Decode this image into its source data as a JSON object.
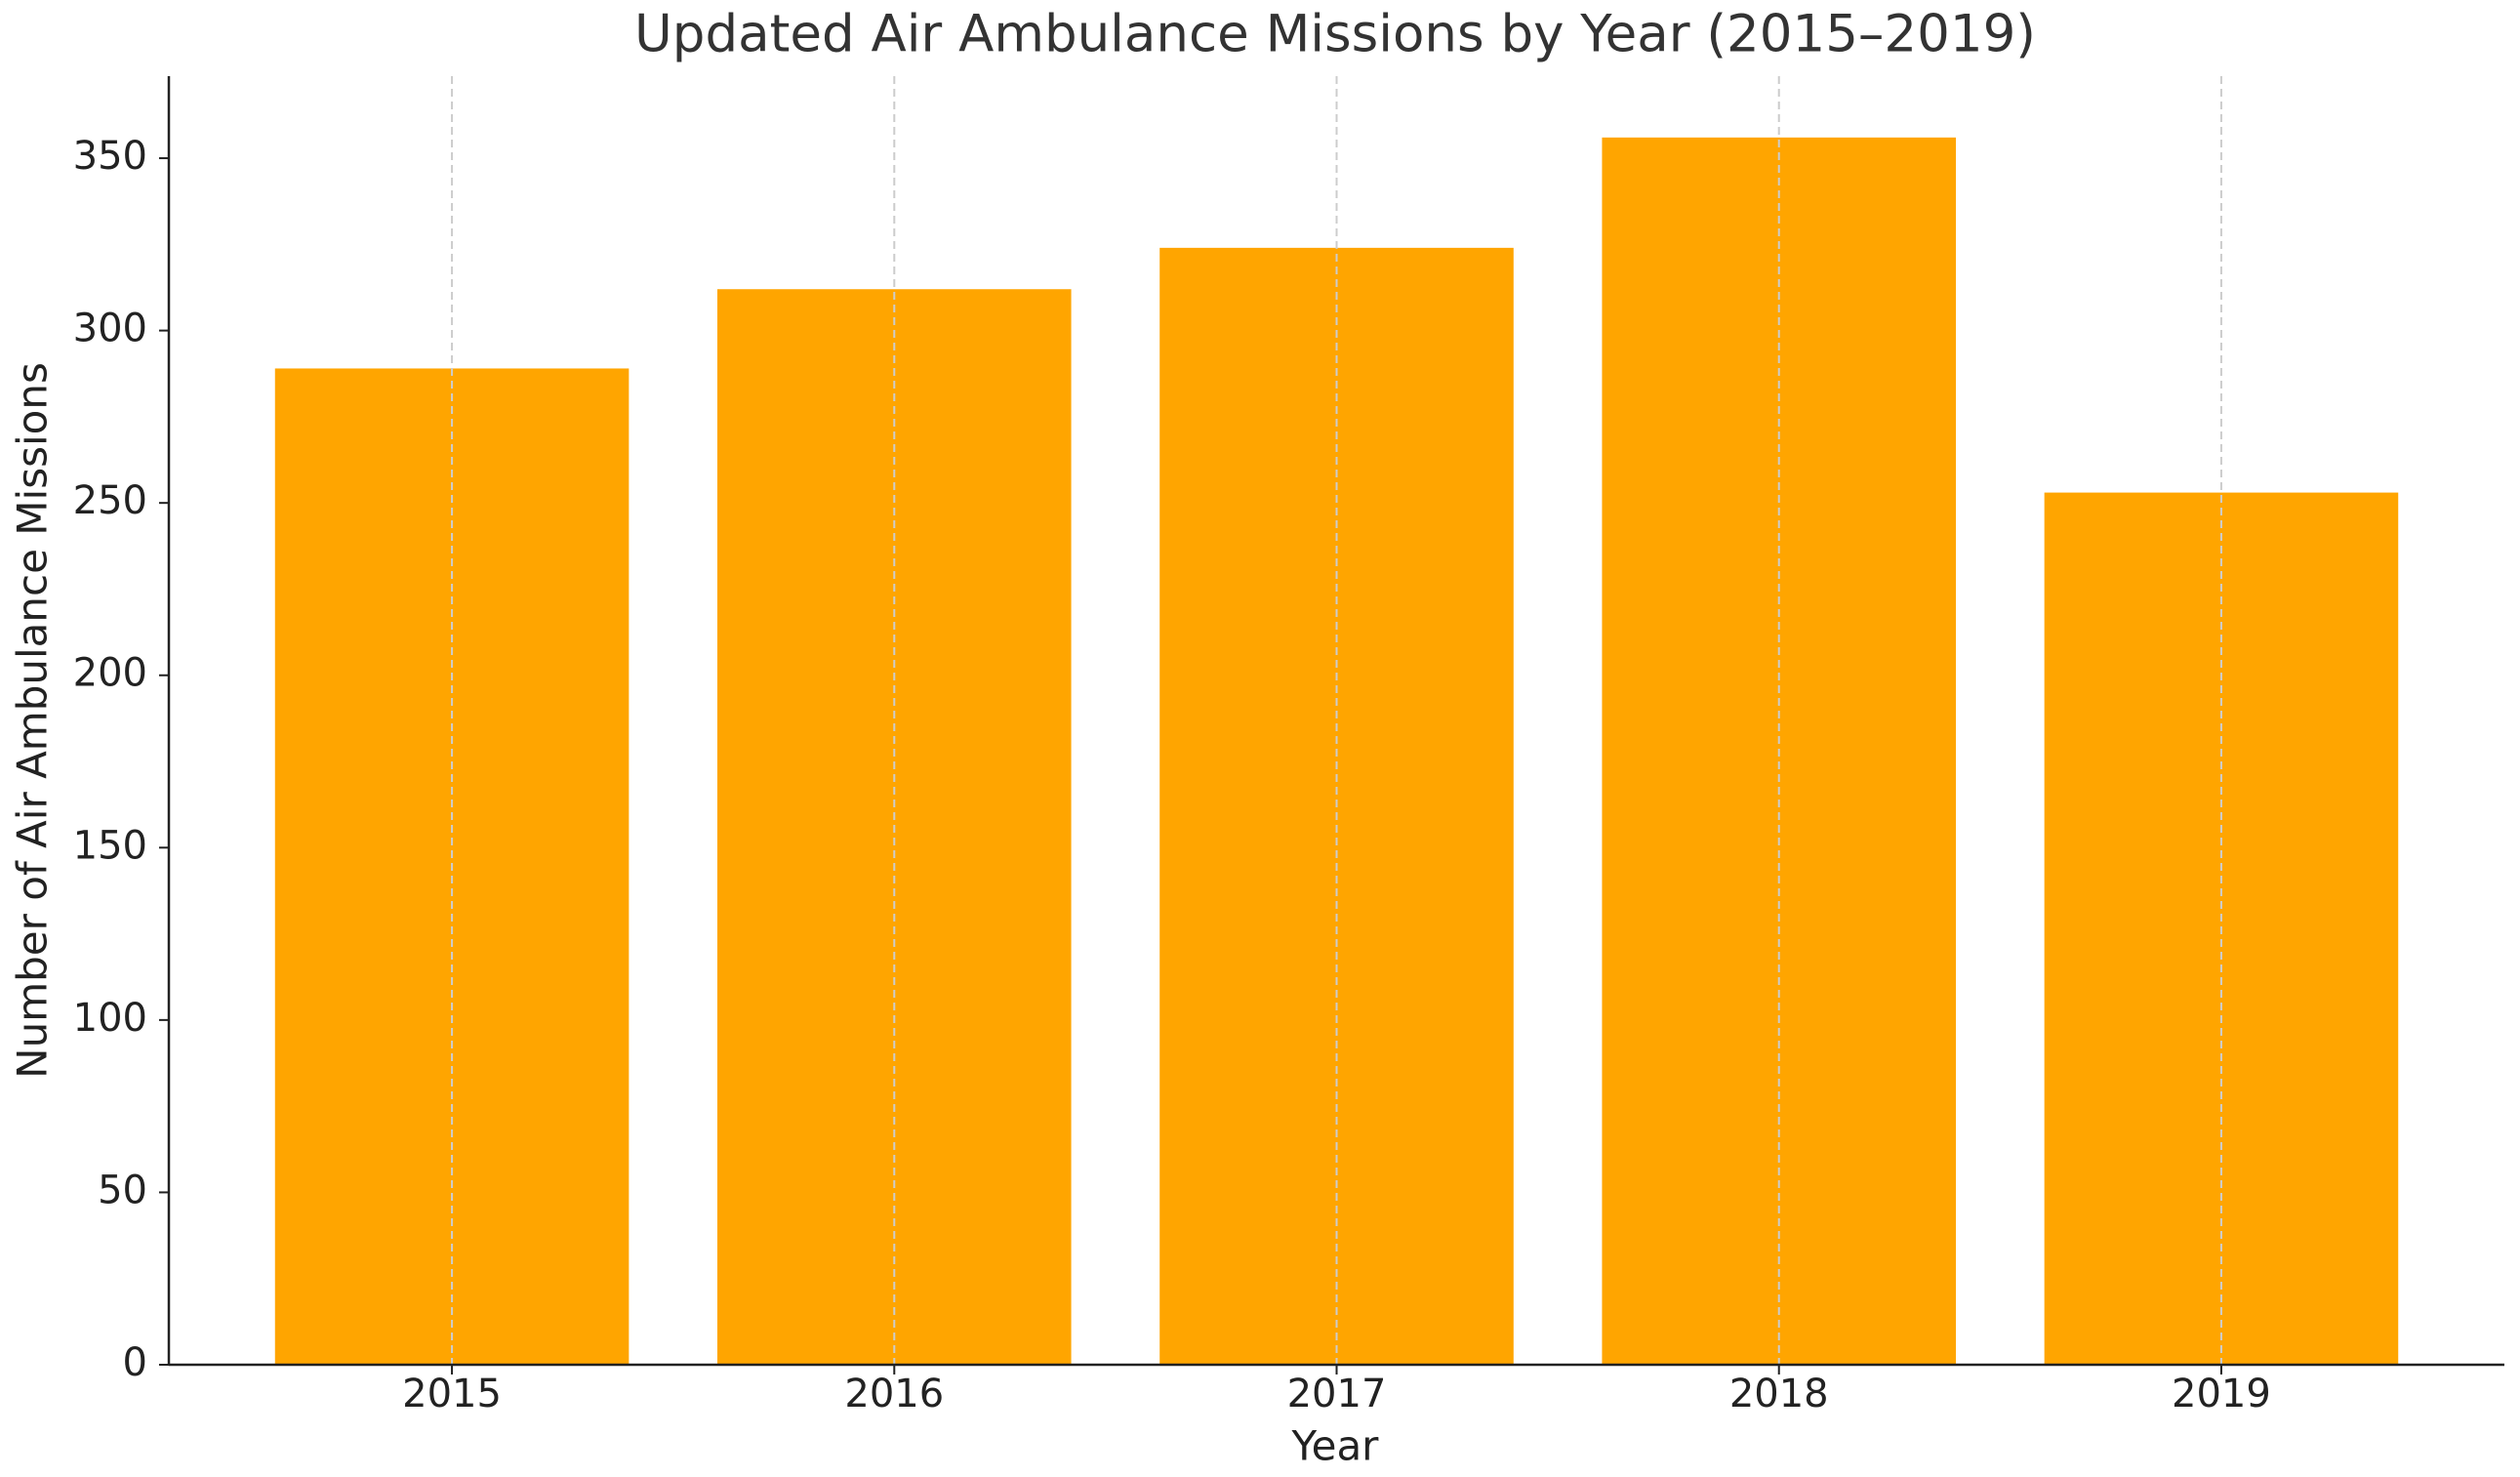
{
  "chart_data": {
    "type": "bar",
    "title": "Updated Air Ambulance Missions by Year (2015–2019)",
    "x_label": "Year",
    "y_label": "Number of Air Ambulance Missions",
    "categories": [
      "2015",
      "2016",
      "2017",
      "2018",
      "2019"
    ],
    "values": [
      289,
      312,
      324,
      356,
      253
    ],
    "color": "#ffa500",
    "ylim": [
      0,
      373.8
    ],
    "yticks": [
      0,
      50,
      100,
      150,
      200,
      250,
      300,
      350
    ],
    "grid": "x"
  }
}
